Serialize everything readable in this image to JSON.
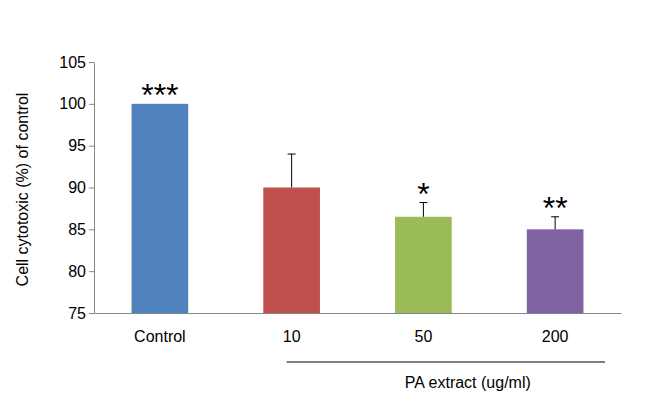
{
  "chart_data": {
    "type": "bar",
    "ylabel": "Cell cytotoxic (%) of control",
    "xlabel": "PA extract (ug/ml)",
    "categories": [
      "Control",
      "10",
      "50",
      "200"
    ],
    "values": [
      100,
      90,
      86.5,
      85
    ],
    "errors": [
      0,
      4,
      1.7,
      1.5
    ],
    "annotations": [
      "***",
      null,
      "*",
      "**"
    ],
    "colors": [
      "#4f81bd",
      "#c0504d",
      "#9bbb59",
      "#8064a2"
    ],
    "ylim": [
      75,
      105
    ],
    "yticks": [
      75,
      80,
      85,
      90,
      95,
      100,
      105
    ],
    "grid": false
  }
}
